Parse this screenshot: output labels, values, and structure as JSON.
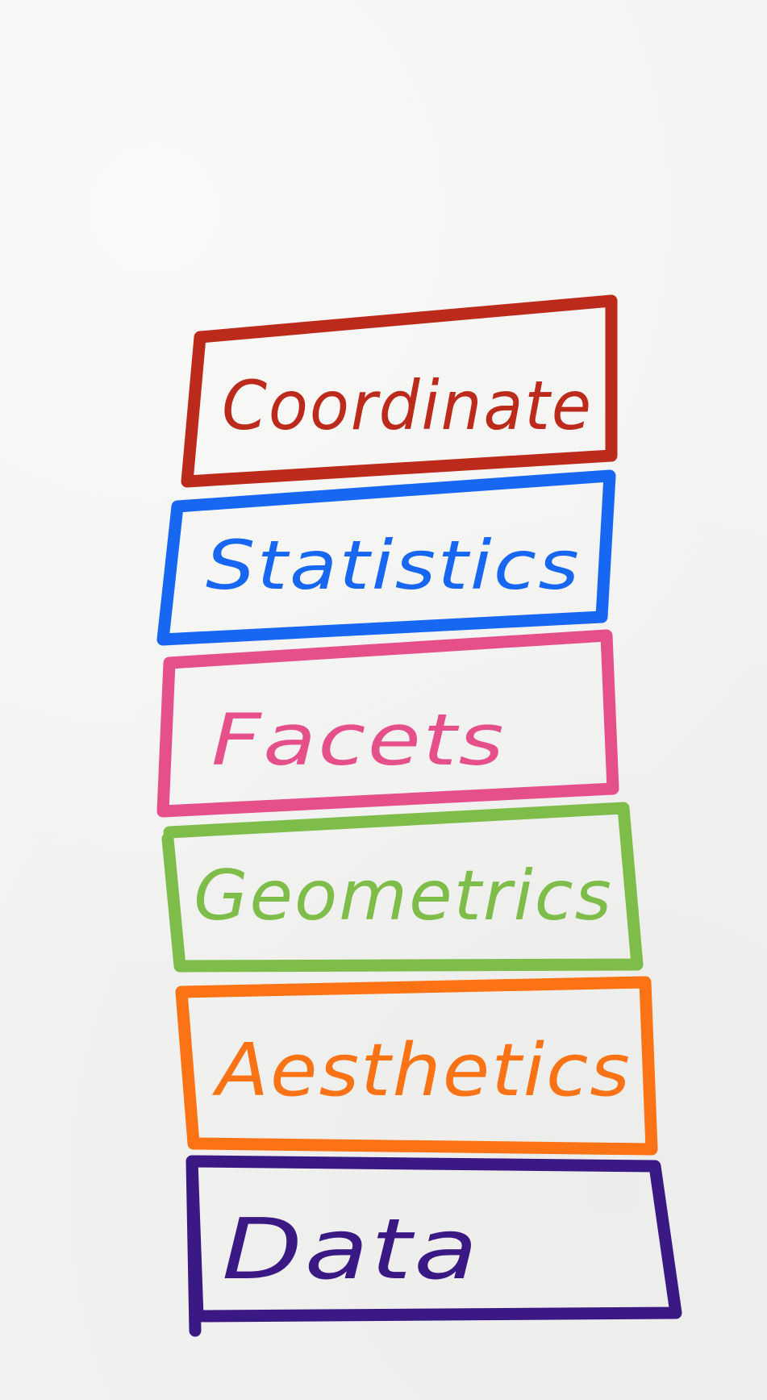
{
  "layers": [
    {
      "id": "coordinate",
      "label": "Coordinate",
      "color": "#bb2a1a"
    },
    {
      "id": "statistics",
      "label": "Statistics",
      "color": "#1767f2"
    },
    {
      "id": "facets",
      "label": "Facets",
      "color": "#e6508a"
    },
    {
      "id": "geometrics",
      "label": "Geometrics",
      "color": "#7fbd4b"
    },
    {
      "id": "aesthetics",
      "label": "Aesthetics",
      "color": "#fb7314"
    },
    {
      "id": "data",
      "label": "Data",
      "color": "#3a1984"
    }
  ]
}
